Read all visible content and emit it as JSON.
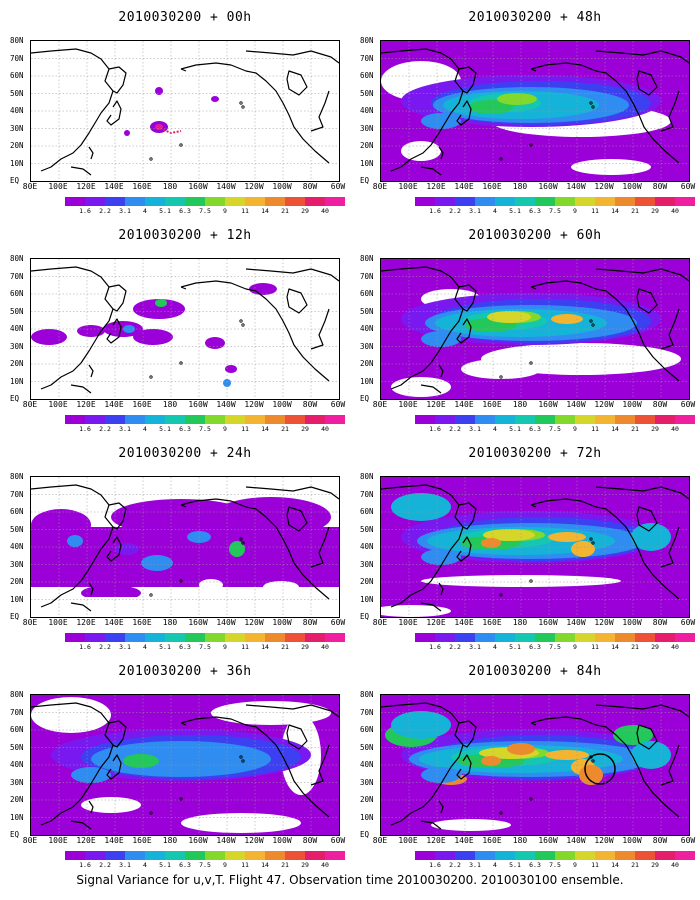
{
  "panels": [
    {
      "title": "2010030200 + 00h",
      "level": 0
    },
    {
      "title": "2010030200 + 48h",
      "level": 4
    },
    {
      "title": "2010030200 + 12h",
      "level": 1
    },
    {
      "title": "2010030200 + 60h",
      "level": 5
    },
    {
      "title": "2010030200 + 24h",
      "level": 2
    },
    {
      "title": "2010030200 + 72h",
      "level": 6
    },
    {
      "title": "2010030200 + 36h",
      "level": 3
    },
    {
      "title": "2010030200 + 84h",
      "level": 7
    }
  ],
  "lat_labels": [
    "80N",
    "70N",
    "60N",
    "50N",
    "40N",
    "30N",
    "20N",
    "10N",
    "EQ"
  ],
  "lon_labels": [
    "80E",
    "100E",
    "120E",
    "140E",
    "160E",
    "180",
    "160W",
    "140W",
    "120W",
    "100W",
    "80W",
    "60W"
  ],
  "colorbar": {
    "labels": [
      "1.6",
      "2.2",
      "3.1",
      "4",
      "5.1",
      "6.3",
      "7.5",
      "9",
      "11",
      "14",
      "21",
      "29",
      "40"
    ],
    "colors": [
      "#9b00d9",
      "#7a19ef",
      "#3c40f0",
      "#2f8cf0",
      "#15b3d8",
      "#14c8b0",
      "#22c85a",
      "#82d92c",
      "#d6d62a",
      "#f2b431",
      "#ee8a2e",
      "#ee5236",
      "#e41e6a",
      "#f01fa0"
    ]
  },
  "footer": "Signal Variance for u,v,T. Flight 47. Observation time 2010030200. 2010030100 ensemble."
}
